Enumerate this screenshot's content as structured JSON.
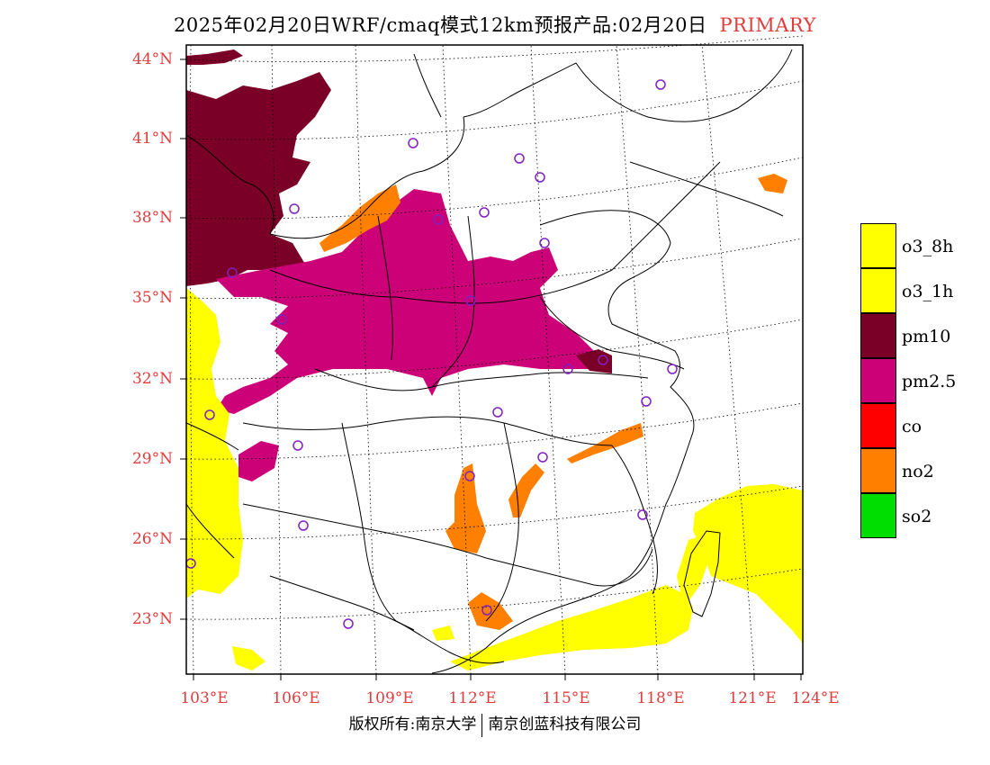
{
  "title": {
    "main": "2025年02月20日WRF/cmaq模式12km预报产品:02月20日",
    "tag": "PRIMARY"
  },
  "axes": {
    "lat_labels": [
      "44°N",
      "41°N",
      "38°N",
      "35°N",
      "32°N",
      "29°N",
      "26°N",
      "23°N"
    ],
    "lon_labels": [
      "103°E",
      "106°E",
      "109°E",
      "112°E",
      "115°E",
      "118°E",
      "121°E",
      "124°E"
    ],
    "label_color": "#e03c3c"
  },
  "legend": [
    {
      "label": "o3_8h",
      "color": "#ffff00"
    },
    {
      "label": "o3_1h",
      "color": "#ffff00"
    },
    {
      "label": "pm10",
      "color": "#7a0027"
    },
    {
      "label": "pm2.5",
      "color": "#cc0077"
    },
    {
      "label": "co",
      "color": "#ff0000"
    },
    {
      "label": "no2",
      "color": "#ff8000"
    },
    {
      "label": "so2",
      "color": "#00dd00"
    }
  ],
  "copyright": {
    "left": "版权所有:南京大学",
    "right": "南京创蓝科技有限公司"
  }
}
